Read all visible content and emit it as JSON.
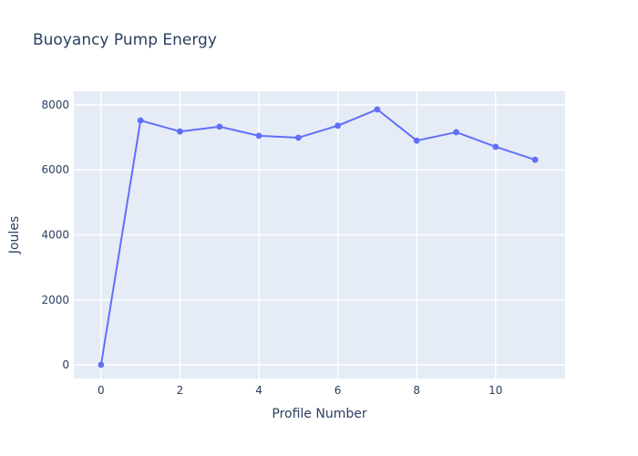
{
  "chart_data": {
    "type": "line",
    "title": "Buoyancy Pump Energy",
    "xlabel": "Profile Number",
    "ylabel": "Joules",
    "x": [
      0,
      1,
      2,
      3,
      4,
      5,
      6,
      7,
      8,
      9,
      10,
      11
    ],
    "y": [
      0,
      7520,
      7180,
      7330,
      7050,
      6990,
      7360,
      7860,
      6900,
      7160,
      6710,
      6310
    ],
    "x_ticks": [
      0,
      2,
      4,
      6,
      8,
      10
    ],
    "y_ticks": [
      0,
      2000,
      4000,
      6000,
      8000
    ],
    "x_range": [
      -0.69,
      11.76
    ],
    "y_range": [
      -421,
      8421
    ],
    "grid": true,
    "legend": false,
    "marker_mode": "lines+markers",
    "line_color": "#636efa",
    "plot_bg_color": "#e5ecf6",
    "grid_color": "#ffffff",
    "text_color": "#2a3f5f",
    "page_bg_color": "#ffffff"
  }
}
